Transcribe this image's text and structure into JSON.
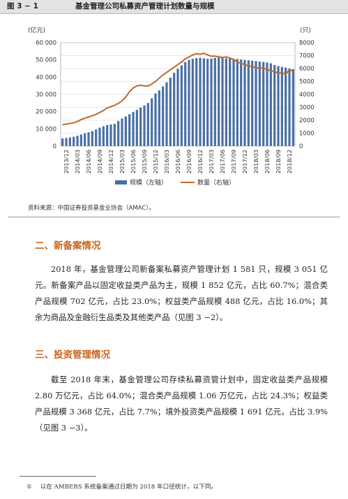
{
  "figure": {
    "number": "图 3 − 1",
    "title": "基金管理公司私募资产管理计划数量与规模",
    "source": "资料来源：中国证券投资基金业协会（AMAC）。"
  },
  "colors": {
    "bars": "#4a6fa5",
    "line": "#c0672a",
    "heading": "#c8641e"
  },
  "chart_data": {
    "type": "bar+line",
    "title": "基金管理公司私募资产管理计划数量与规模",
    "y_left_unit": "(亿元)",
    "y_right_unit": "(只)",
    "y_left_range": [
      0,
      60000
    ],
    "y_right_range": [
      0,
      8000
    ],
    "y_left_ticks": [
      "0",
      "10 000",
      "20 000",
      "30 000",
      "40 000",
      "50 000",
      "60 000"
    ],
    "y_right_ticks": [
      "0",
      "1000",
      "2000",
      "3000",
      "4000",
      "5000",
      "6000",
      "7000",
      "8000"
    ],
    "grid": true,
    "legend_position": "bottom",
    "x_labels": [
      "2013/12",
      "2014/03",
      "2014/06",
      "2014/09",
      "2014/12",
      "2015/03",
      "2015/06",
      "2015/09",
      "2015/12",
      "2016/03",
      "2016/06",
      "2016/09",
      "2016/12",
      "2017/03",
      "2017/06",
      "2017/09",
      "2017/12",
      "2018/03",
      "2018/06",
      "2018/09",
      "2018/12"
    ],
    "series": [
      {
        "name": "规模（左轴）",
        "type": "bar",
        "axis": "left",
        "values": [
          4400,
          4700,
          5000,
          5400,
          6000,
          6700,
          7400,
          8000,
          8700,
          9600,
          10700,
          11500,
          12200,
          12500,
          12900,
          14500,
          16000,
          17200,
          18500,
          19800,
          21000,
          22300,
          23600,
          25000,
          27700,
          30500,
          32300,
          34600,
          37000,
          39700,
          42500,
          44800,
          46800,
          48700,
          50000,
          50600,
          51000,
          51200,
          50900,
          50600,
          50800,
          51100,
          51300,
          51100,
          50900,
          50700,
          50600,
          50500,
          50200,
          50000,
          49800,
          49500,
          49300,
          49000,
          48800,
          48500,
          48000,
          47000,
          46400,
          45900,
          45500,
          45000,
          44600
        ]
      },
      {
        "name": "数量（右轴）",
        "type": "line",
        "axis": "right",
        "values": [
          1650,
          1700,
          1750,
          1800,
          1900,
          2050,
          2150,
          2250,
          2350,
          2450,
          2600,
          2750,
          2950,
          3050,
          3150,
          3300,
          3500,
          3800,
          4200,
          4500,
          4650,
          4700,
          4650,
          4650,
          4800,
          5000,
          5250,
          5500,
          5700,
          5900,
          6100,
          6300,
          6500,
          6750,
          6900,
          7050,
          7150,
          7100,
          7180,
          7050,
          6950,
          6950,
          6900,
          6850,
          6900,
          6800,
          6700,
          6500,
          6400,
          6300,
          6200,
          6150,
          6050,
          6050,
          6000,
          5950,
          5800,
          5800,
          5600,
          5700,
          5550,
          5900,
          5800
        ]
      }
    ]
  },
  "sections": [
    {
      "heading": "二、新备案情况",
      "paragraph": "2018 年，基金管理公司新备案私募资产管理计划 1 581 只，规模 3 051 亿元。新备案产品以固定收益类产品为主，规模 1 852 亿元，占比 60.7%；混合类产品规模 702 亿元，占比 23.0%；权益类产品规模 488 亿元，占比 16.0%；其余为商品及金融衍生品类及其他类产品（见图 3 −2）。"
    },
    {
      "heading": "三、投资管理情况",
      "paragraph": "截至 2018 年末，基金管理公司存续私募资管计划中，固定收益类产品规模 2.80 万亿元，占比 64.0%；混合类产品规模 1.06 万亿元，占比 24.3%；权益类产品规模 3 368 亿元，占比 7.7%；境外投资类产品规模 1 691 亿元，占比 3.9%（见图 3 −3）。"
    }
  ],
  "footnote": {
    "mark": "①",
    "text": "以在 AMBERS 系统备案通过日期为 2018 年口径统计，以下同。"
  }
}
